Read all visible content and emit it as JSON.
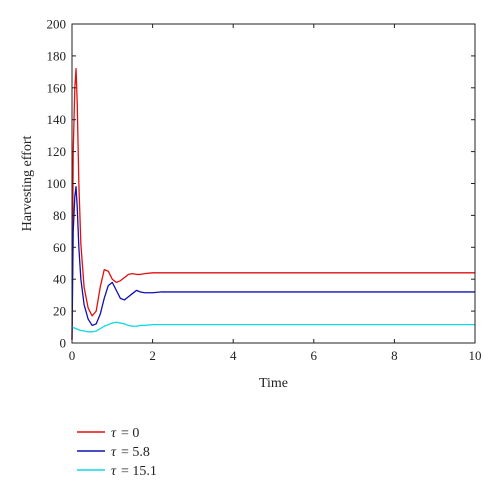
{
  "chart_data": {
    "type": "line",
    "xlabel": "Time",
    "ylabel": "Harvesting effort",
    "xlim": [
      0,
      10
    ],
    "ylim": [
      0,
      200
    ],
    "xticks": [
      "0",
      "2",
      "4",
      "6",
      "8",
      "10"
    ],
    "yticks": [
      "0",
      "20",
      "40",
      "60",
      "80",
      "100",
      "120",
      "140",
      "160",
      "180",
      "200"
    ],
    "grid": false,
    "legend_position": "bottom-left, below plot",
    "series": [
      {
        "name": "τ = 0",
        "legend_symbol": "τ",
        "legend_value": "= 0",
        "color": "#e01010",
        "x": [
          0,
          0.03,
          0.07,
          0.1,
          0.13,
          0.17,
          0.22,
          0.3,
          0.4,
          0.5,
          0.6,
          0.7,
          0.8,
          0.9,
          1.0,
          1.1,
          1.2,
          1.3,
          1.4,
          1.5,
          1.6,
          1.7,
          1.8,
          2.0,
          2.5,
          3,
          4,
          5,
          6,
          7,
          8,
          9,
          10
        ],
        "y": [
          2,
          120,
          160,
          172,
          150,
          100,
          62,
          35,
          22,
          17,
          20,
          35,
          46,
          45,
          40,
          38,
          39,
          41,
          43,
          43.5,
          43,
          43,
          43.5,
          44,
          44,
          44,
          44,
          44,
          44,
          44,
          44,
          44,
          44
        ]
      },
      {
        "name": "τ = 5.8",
        "legend_symbol": "τ",
        "legend_value": "= 5.8",
        "color": "#1010b0",
        "x": [
          0,
          0.03,
          0.07,
          0.1,
          0.13,
          0.17,
          0.22,
          0.3,
          0.4,
          0.5,
          0.6,
          0.7,
          0.8,
          0.9,
          1.0,
          1.1,
          1.2,
          1.3,
          1.4,
          1.5,
          1.6,
          1.7,
          1.8,
          2.0,
          2.2,
          2.5,
          3,
          4,
          5,
          6,
          7,
          8,
          9,
          10
        ],
        "y": [
          2,
          70,
          92,
          98,
          85,
          60,
          40,
          24,
          15,
          11,
          12,
          18,
          28,
          36,
          38,
          33,
          28,
          27,
          29,
          31,
          33,
          32,
          31.5,
          31.5,
          32,
          32,
          32,
          32,
          32,
          32,
          32,
          32,
          32,
          32
        ]
      },
      {
        "name": "τ = 15.1",
        "legend_symbol": "τ",
        "legend_value": "= 15.1",
        "color": "#10d8e8",
        "x": [
          0,
          0.1,
          0.2,
          0.3,
          0.4,
          0.5,
          0.6,
          0.7,
          0.8,
          0.9,
          1.0,
          1.1,
          1.2,
          1.3,
          1.4,
          1.5,
          1.6,
          1.7,
          1.8,
          2.0,
          2.2,
          2.5,
          3,
          4,
          5,
          6,
          7,
          8,
          9,
          10
        ],
        "y": [
          10,
          9,
          8,
          7.5,
          7,
          7,
          7.5,
          9,
          10.5,
          11.5,
          12.5,
          13,
          12.5,
          12,
          11,
          10.5,
          10.5,
          11,
          11,
          11.5,
          11.5,
          11.5,
          11.5,
          11.5,
          11.5,
          11.5,
          11.5,
          11.5,
          11.5,
          11.5
        ]
      }
    ]
  }
}
